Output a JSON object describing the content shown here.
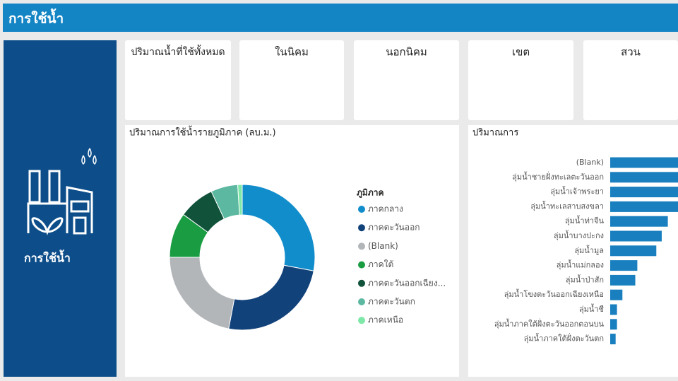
{
  "header": {
    "title": "การใช้น้ำ"
  },
  "sidebar": {
    "label": "การใช้น้ำ"
  },
  "cards": [
    {
      "title": "ปริมาณน้ำที่ใช้ทั้งหมด"
    },
    {
      "title": "ในนิคม"
    },
    {
      "title": "นอกนิคม"
    },
    {
      "title": "เขต"
    },
    {
      "title": "สวน"
    }
  ],
  "chart_data": [
    {
      "type": "pie",
      "donut": true,
      "title": "ปริมาณการใช้น้ำรายภูมิภาค (ลบ.ม.)",
      "legend_title": "ภูมิภาค",
      "categories": [
        "ภาคกลาง",
        "ภาคตะวันออก",
        "(Blank)",
        "ภาคใต้",
        "ภาคตะวันออกเฉียง...",
        "ภาคตะวันตก",
        "ภาคเหนือ"
      ],
      "values": [
        28,
        25,
        22,
        10,
        8,
        6,
        1
      ],
      "colors": [
        "#118dcc",
        "#12427a",
        "#b3b6b9",
        "#1a9c43",
        "#11523a",
        "#5cb8a0",
        "#7ee8a8"
      ]
    },
    {
      "type": "bar",
      "orientation": "horizontal",
      "title": "ปริมาณการ",
      "categories": [
        "(Blank)",
        "ลุ่มน้ำชายฝั่งทะเลตะวันออก",
        "ลุ่มน้ำเจ้าพระยา",
        "ลุ่มน้ำทะเลสาบสงขลา",
        "ลุ่มน้ำท่าจีน",
        "ลุ่มน้ำบางปะกง",
        "ลุ่มน้ำมูล",
        "ลุ่มน้ำแม่กลอง",
        "ลุ่มน้ำป่าสัก",
        "ลุ่มน้ำโขงตะวันออกเฉียงเหนือ",
        "ลุ่มน้ำชี",
        "ลุ่มน้ำภาคใต้ฝั่งตะวันออกตอนบน",
        "ลุ่มน้ำภาคใต้ฝั่งตะวันตก"
      ],
      "values": [
        100,
        100,
        100,
        100,
        85,
        76,
        68,
        40,
        37,
        18,
        10,
        10,
        8
      ],
      "color": "#1a7fbf"
    }
  ]
}
